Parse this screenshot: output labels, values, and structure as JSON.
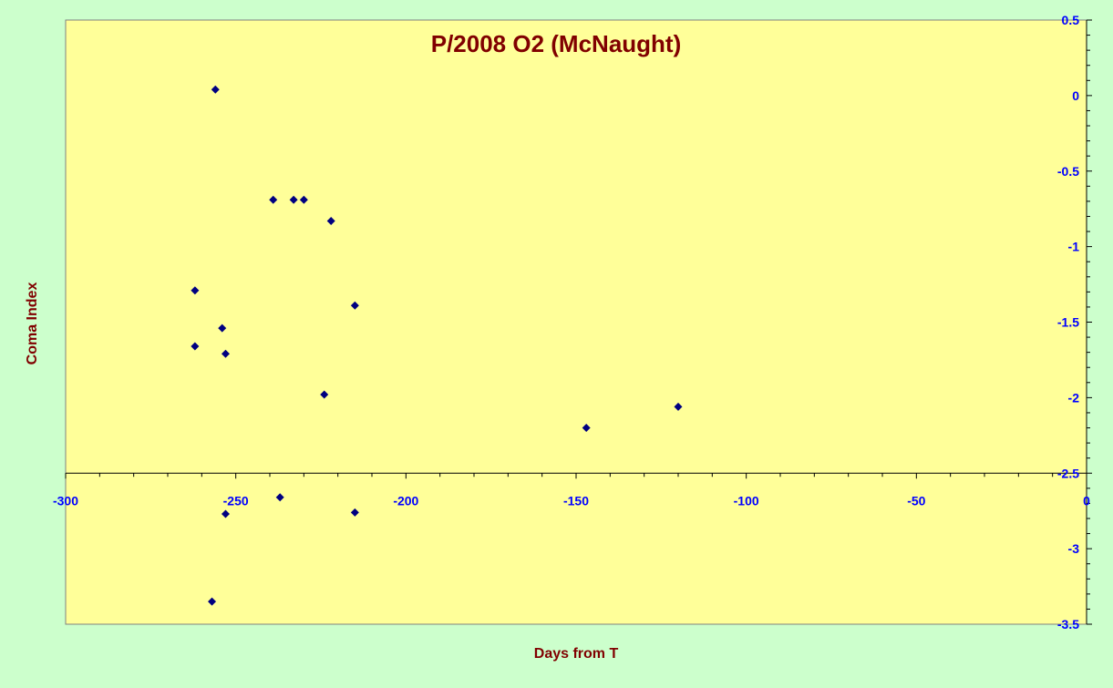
{
  "chart_data": {
    "type": "scatter",
    "title": "P/2008 O2 (McNaught)",
    "xlabel": "Days from T",
    "ylabel": "Coma Index",
    "xlim": [
      -300,
      0
    ],
    "ylim": [
      -3.5,
      0.5
    ],
    "x_ticks": [
      -300,
      -250,
      -200,
      -150,
      -100,
      -50,
      0
    ],
    "x_tick_labels": [
      "-300",
      "-250",
      "-200",
      "-150",
      "-100",
      "-50",
      "0"
    ],
    "y_ticks": [
      0.5,
      0,
      -0.5,
      -1,
      -1.5,
      -2,
      -2.5,
      -3,
      -3.5
    ],
    "y_tick_labels": [
      "0.5",
      "0",
      "-0.5",
      "-1",
      "-1.5",
      "-2",
      "-2.5",
      "-3",
      "-3.5"
    ],
    "x_axis_crosses_at": -2.5,
    "grid": false,
    "legend": "none",
    "series": [
      {
        "points": [
          {
            "x": -256,
            "y": 0.04
          },
          {
            "x": -239,
            "y": -0.69
          },
          {
            "x": -233,
            "y": -0.69
          },
          {
            "x": -230,
            "y": -0.69
          },
          {
            "x": -222,
            "y": -0.83
          },
          {
            "x": -262,
            "y": -1.29
          },
          {
            "x": -215,
            "y": -1.39
          },
          {
            "x": -254,
            "y": -1.54
          },
          {
            "x": -262,
            "y": -1.66
          },
          {
            "x": -253,
            "y": -1.71
          },
          {
            "x": -224,
            "y": -1.98
          },
          {
            "x": -147,
            "y": -2.2
          },
          {
            "x": -120,
            "y": -2.06
          },
          {
            "x": -237,
            "y": -2.66
          },
          {
            "x": -253,
            "y": -2.77
          },
          {
            "x": -215,
            "y": -2.76
          },
          {
            "x": -257,
            "y": -3.35
          }
        ]
      }
    ]
  },
  "colors": {
    "page_background": "#ccffcc",
    "plot_background": "#ffff99",
    "title_color": "#800000",
    "axis_label_color": "#800000",
    "tick_label_color": "#0000ff",
    "marker_color": "#000080",
    "axis_line_color": "#000000"
  }
}
